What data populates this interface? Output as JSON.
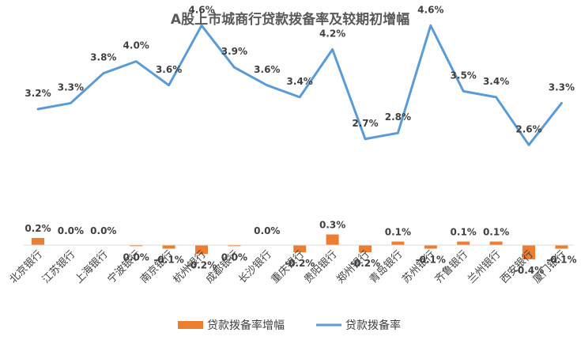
{
  "chart_data": {
    "type": "bar+line",
    "title": "A股上市城商行贷款拨备率及较期初增幅",
    "categories": [
      "北京银行",
      "江苏银行",
      "上海银行",
      "宁波银行",
      "南京银行",
      "杭州银行",
      "成都银行",
      "长沙银行",
      "重庆银行",
      "贵阳银行",
      "郑州银行",
      "青岛银行",
      "苏州银行",
      "齐鲁银行",
      "兰州银行",
      "西安银行",
      "厦门银行"
    ],
    "series": [
      {
        "name": "贷款拨备率增幅",
        "type": "bar",
        "color": "#ED7D31",
        "values": [
          0.2,
          0.0,
          0.0,
          -0.03,
          -0.1,
          -0.25,
          -0.03,
          0.0,
          -0.2,
          0.3,
          -0.2,
          0.1,
          -0.1,
          0.1,
          0.1,
          -0.4,
          -0.1
        ],
        "labels": [
          "0.2%",
          "0.0%",
          "0.0%",
          "0.0%",
          "-0.1%",
          "-0.2%",
          "0.0%",
          "0.0%",
          "-0.2%",
          "0.3%",
          "-0.2%",
          "0.1%",
          "-0.1%",
          "0.1%",
          "0.1%",
          "-0.4%",
          "-0.1%"
        ]
      },
      {
        "name": "贷款拨备率",
        "type": "line",
        "color": "#5B9BD5",
        "values": [
          3.2,
          3.3,
          3.8,
          4.0,
          3.6,
          4.6,
          3.9,
          3.6,
          3.4,
          4.2,
          2.7,
          2.8,
          4.6,
          3.5,
          3.4,
          2.6,
          3.3
        ],
        "labels": [
          "3.2%",
          "3.3%",
          "3.8%",
          "4.0%",
          "3.6%",
          "4.6%",
          "3.9%",
          "3.6%",
          "3.4%",
          "4.2%",
          "2.7%",
          "2.8%",
          "4.6%",
          "3.5%",
          "3.4%",
          "2.6%",
          "3.3%"
        ]
      }
    ],
    "legend": "bottom",
    "grid": false
  }
}
